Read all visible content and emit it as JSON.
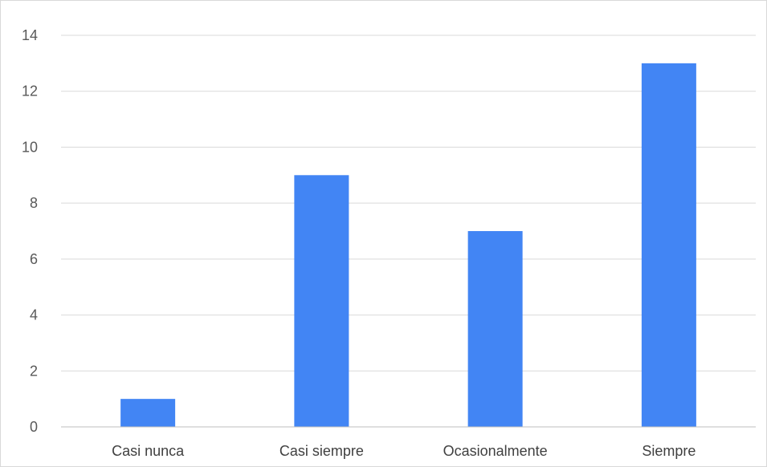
{
  "chart_data": {
    "type": "bar",
    "title": "",
    "xlabel": "",
    "ylabel": "",
    "categories": [
      "Casi nunca",
      "Casi siempre",
      "Ocasionalmente",
      "Siempre"
    ],
    "values": [
      1,
      9,
      7,
      13
    ],
    "ylim": [
      0,
      14
    ],
    "yticks": [
      0,
      2,
      4,
      6,
      8,
      10,
      12,
      14
    ],
    "grid": true,
    "legend": "none",
    "bar_color": "#4285f4"
  }
}
